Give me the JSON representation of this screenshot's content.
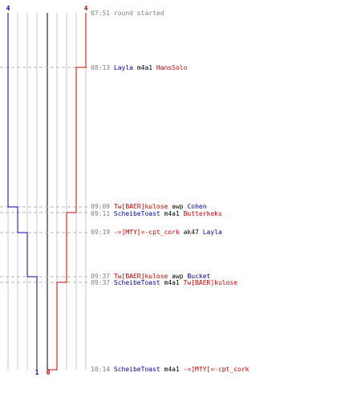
{
  "colors": {
    "team_blue": "#0000aa",
    "team_red": "#cc0000",
    "grid": "#c8c8c8",
    "center": "#808080",
    "dash": "#b4b4b4",
    "time_text": "#808080",
    "weapon_text": "#000000"
  },
  "counts": {
    "blue_start": "4",
    "red_start": "4",
    "blue_end": "1",
    "red_end": "0"
  },
  "events": [
    {
      "time": "07:51",
      "text": "round started"
    },
    {
      "time": "08:13",
      "killer": "Layla",
      "killer_team": "blue",
      "weapon": "m4a1",
      "victim": "HansSolo",
      "victim_team": "red"
    },
    {
      "time": "09:09",
      "killer": "Tw[BAER]kulose",
      "killer_team": "red",
      "weapon": "awp",
      "victim": "Cohen",
      "victim_team": "blue"
    },
    {
      "time": "09:11",
      "killer": "ScheibeToast",
      "killer_team": "blue",
      "weapon": "m4a1",
      "victim": "Butterkeks",
      "victim_team": "red"
    },
    {
      "time": "09:19",
      "killer": "-=]MfY[=-cpt_cork",
      "killer_team": "red",
      "weapon": "ak47",
      "victim": "Layla",
      "victim_team": "blue"
    },
    {
      "time": "09:37",
      "killer": "Tw[BAER]kulose",
      "killer_team": "red",
      "weapon": "awp",
      "victim": "Bucket",
      "victim_team": "blue"
    },
    {
      "time": "09:37",
      "killer": "ScheibeToast",
      "killer_team": "blue",
      "weapon": "m4a1",
      "victim": "Tw[BAER]kulose",
      "victim_team": "red"
    },
    {
      "time": "10:14",
      "killer": "ScheibeToast",
      "killer_team": "blue",
      "weapon": "m4a1",
      "victim": "-=]MfY[=-cpt_cork",
      "victim_team": "red"
    }
  ]
}
